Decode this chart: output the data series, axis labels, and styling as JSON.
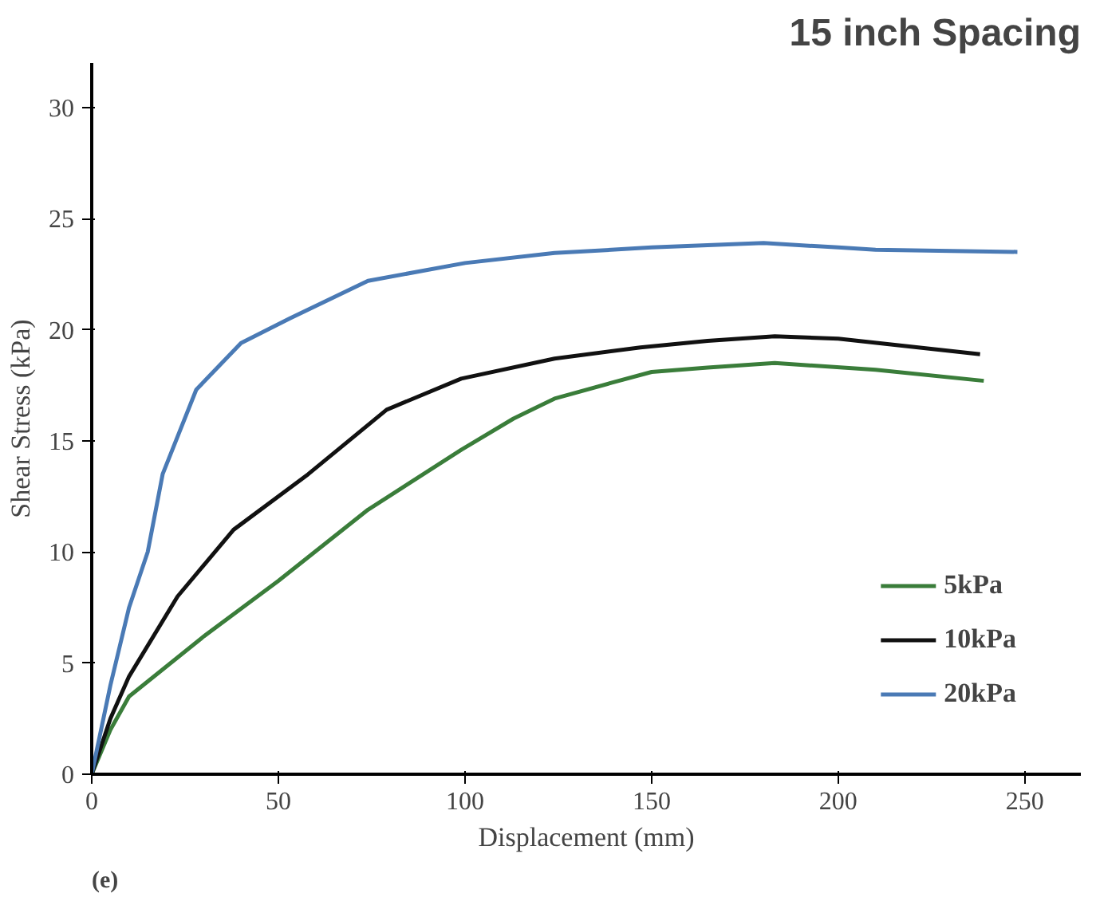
{
  "chart_data": {
    "type": "line",
    "title": "15 inch Spacing",
    "xlabel": "Displacement (mm)",
    "ylabel": "Shear Stress (kPa)",
    "annotations": [
      "(e)"
    ],
    "xlim": [
      0,
      265
    ],
    "ylim": [
      0,
      32
    ],
    "xticks": [
      0,
      50,
      100,
      150,
      200,
      250
    ],
    "yticks": [
      0,
      5,
      10,
      15,
      20,
      25,
      30
    ],
    "grid": false,
    "legend": "bottom right",
    "marker": "none",
    "line_style": "solid",
    "series": [
      {
        "name": "5kPa",
        "color": "#3a7d3a",
        "x": [
          0,
          5,
          10,
          30,
          50,
          74,
          99,
          113,
          124,
          139,
          150,
          165,
          183,
          210,
          239
        ],
        "values": [
          0,
          2,
          3.5,
          6.2,
          8.7,
          11.9,
          14.6,
          16,
          16.9,
          17.6,
          18.1,
          18.3,
          18.5,
          18.2,
          17.7
        ]
      },
      {
        "name": "10kPa",
        "color": "#111111",
        "x": [
          0,
          5,
          10,
          23,
          38,
          58,
          79,
          99,
          124,
          147,
          165,
          183,
          200,
          238
        ],
        "values": [
          0,
          2.5,
          4.4,
          8,
          11,
          13.5,
          16.4,
          17.8,
          18.7,
          19.2,
          19.5,
          19.7,
          19.6,
          18.9
        ]
      },
      {
        "name": "20kPa",
        "color": "#4a7ab5",
        "x": [
          0,
          5,
          10,
          15,
          19,
          28,
          40,
          53,
          74,
          100,
          124,
          150,
          180,
          200,
          210,
          248
        ],
        "values": [
          0,
          4,
          7.5,
          10,
          13.5,
          17.3,
          19.4,
          20.5,
          22.2,
          23,
          23.45,
          23.7,
          23.9,
          23.7,
          23.6,
          23.5
        ]
      }
    ]
  }
}
